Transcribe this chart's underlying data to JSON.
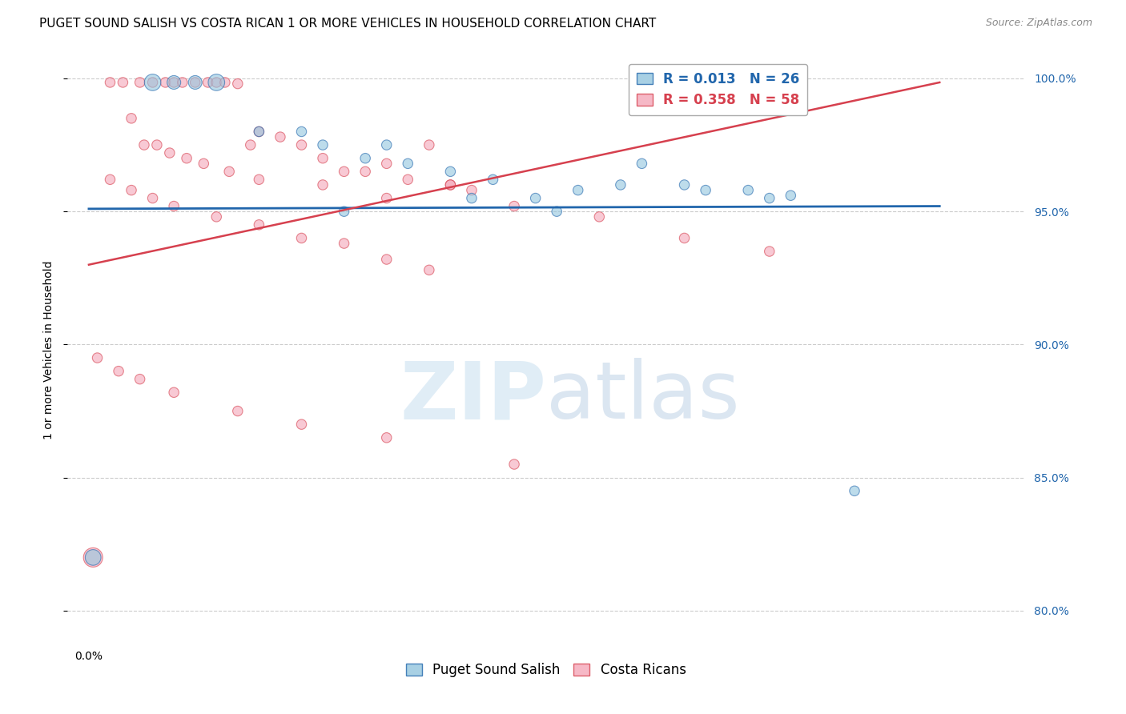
{
  "title": "PUGET SOUND SALISH VS COSTA RICAN 1 OR MORE VEHICLES IN HOUSEHOLD CORRELATION CHART",
  "source": "Source: ZipAtlas.com",
  "ylabel": "1 or more Vehicles in Household",
  "watermark": "ZIPatlas",
  "legend_blue_R": "0.013",
  "legend_blue_N": "26",
  "legend_pink_R": "0.358",
  "legend_pink_N": "58",
  "xlim": [
    -0.005,
    0.22
  ],
  "ylim": [
    0.788,
    1.008
  ],
  "yticks": [
    0.8,
    0.85,
    0.9,
    0.95,
    1.0
  ],
  "ytick_labels": [
    "80.0%",
    "85.0%",
    "90.0%",
    "95.0%",
    "100.0%"
  ],
  "xticks": [
    0.0,
    0.05,
    0.1,
    0.15,
    0.2
  ],
  "xtick_labels": [
    "0.0%",
    "",
    "",
    "",
    ""
  ],
  "blue_color": "#92c5de",
  "pink_color": "#f4a6b8",
  "line_blue_color": "#2166ac",
  "line_pink_color": "#d6404e",
  "grid_color": "#cccccc",
  "background_color": "#ffffff",
  "blue_x": [
    0.001,
    0.015,
    0.02,
    0.025,
    0.03,
    0.04,
    0.05,
    0.055,
    0.065,
    0.075,
    0.085,
    0.095,
    0.105,
    0.115,
    0.125,
    0.14,
    0.155,
    0.165,
    0.06,
    0.07,
    0.09,
    0.11,
    0.13,
    0.145,
    0.16,
    0.18
  ],
  "blue_y": [
    0.82,
    0.9985,
    0.9985,
    0.9985,
    0.9985,
    0.98,
    0.98,
    0.975,
    0.97,
    0.968,
    0.965,
    0.962,
    0.955,
    0.958,
    0.96,
    0.96,
    0.958,
    0.956,
    0.95,
    0.975,
    0.955,
    0.95,
    0.968,
    0.958,
    0.955,
    0.845
  ],
  "blue_sizes": [
    200,
    220,
    150,
    150,
    220,
    80,
    80,
    80,
    80,
    80,
    80,
    80,
    80,
    80,
    80,
    80,
    80,
    80,
    80,
    80,
    80,
    80,
    80,
    80,
    80,
    80
  ],
  "pink_x": [
    0.001,
    0.005,
    0.008,
    0.012,
    0.015,
    0.018,
    0.02,
    0.022,
    0.025,
    0.028,
    0.03,
    0.032,
    0.035,
    0.038,
    0.04,
    0.045,
    0.05,
    0.055,
    0.06,
    0.065,
    0.07,
    0.075,
    0.08,
    0.085,
    0.09,
    0.01,
    0.013,
    0.016,
    0.019,
    0.023,
    0.027,
    0.033,
    0.04,
    0.055,
    0.07,
    0.085,
    0.1,
    0.12,
    0.14,
    0.16,
    0.005,
    0.01,
    0.015,
    0.02,
    0.03,
    0.04,
    0.05,
    0.06,
    0.07,
    0.08,
    0.002,
    0.007,
    0.012,
    0.02,
    0.035,
    0.05,
    0.07,
    0.1
  ],
  "pink_y": [
    0.82,
    0.9985,
    0.9985,
    0.9985,
    0.9985,
    0.9985,
    0.9985,
    0.9985,
    0.9985,
    0.9985,
    0.9985,
    0.9985,
    0.998,
    0.975,
    0.98,
    0.978,
    0.975,
    0.97,
    0.965,
    0.965,
    0.968,
    0.962,
    0.975,
    0.96,
    0.958,
    0.985,
    0.975,
    0.975,
    0.972,
    0.97,
    0.968,
    0.965,
    0.962,
    0.96,
    0.955,
    0.96,
    0.952,
    0.948,
    0.94,
    0.935,
    0.962,
    0.958,
    0.955,
    0.952,
    0.948,
    0.945,
    0.94,
    0.938,
    0.932,
    0.928,
    0.895,
    0.89,
    0.887,
    0.882,
    0.875,
    0.87,
    0.865,
    0.855
  ],
  "pink_sizes": [
    300,
    80,
    80,
    80,
    80,
    80,
    80,
    80,
    80,
    80,
    80,
    80,
    80,
    80,
    80,
    80,
    80,
    80,
    80,
    80,
    80,
    80,
    80,
    80,
    80,
    80,
    80,
    80,
    80,
    80,
    80,
    80,
    80,
    80,
    80,
    80,
    80,
    80,
    80,
    80,
    80,
    80,
    80,
    80,
    80,
    80,
    80,
    80,
    80,
    80,
    80,
    80,
    80,
    80,
    80,
    80,
    80,
    80
  ],
  "blue_line_x": [
    0.0,
    0.2
  ],
  "blue_line_y": [
    0.951,
    0.952
  ],
  "pink_line_x": [
    0.0,
    0.2
  ],
  "pink_line_y": [
    0.93,
    0.9985
  ],
  "title_fontsize": 11,
  "source_fontsize": 9,
  "axis_label_fontsize": 10,
  "tick_fontsize": 10,
  "legend_fontsize": 12
}
